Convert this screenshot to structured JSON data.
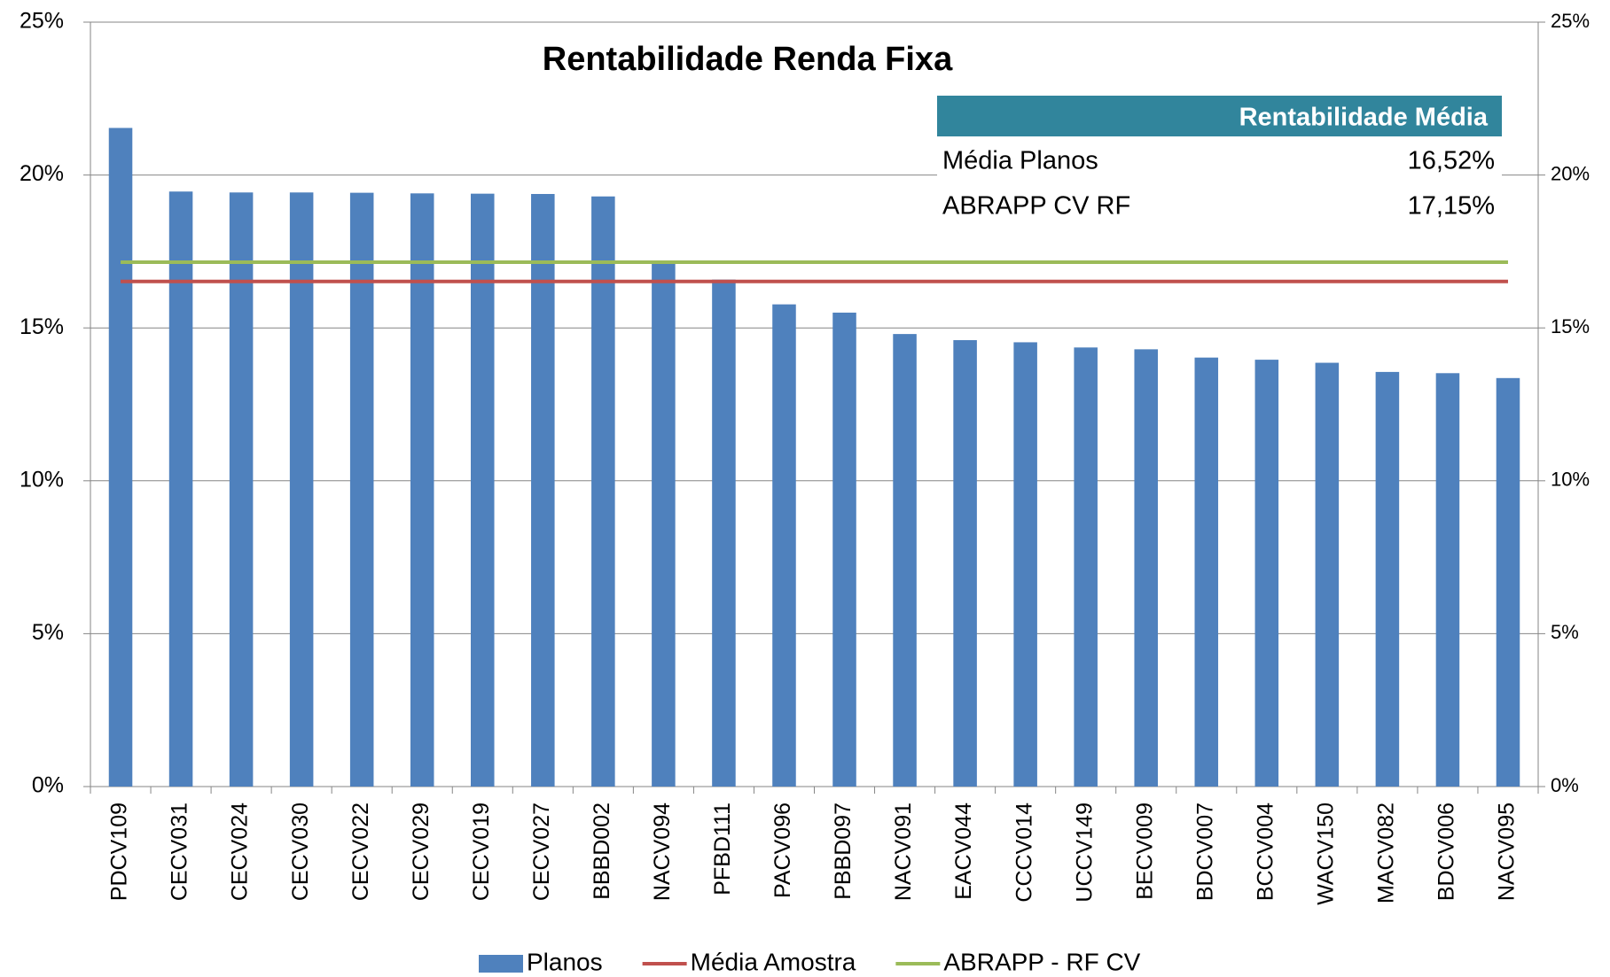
{
  "chart_data": {
    "type": "bar",
    "title": "Rentabilidade Renda Fixa",
    "categories": [
      "PDCV109",
      "CECV031",
      "CECV024",
      "CECV030",
      "CECV022",
      "CECV029",
      "CECV019",
      "CECV027",
      "BBBD002",
      "NACV094",
      "PFBD111",
      "PACV096",
      "PBBD097",
      "NACV091",
      "EACV044",
      "CCCV014",
      "UCCV149",
      "BECV009",
      "BDCV007",
      "BCCV004",
      "WACV150",
      "MACV082",
      "BDCV006",
      "NACV095"
    ],
    "series": [
      {
        "name": "Planos",
        "type": "bar",
        "color": "#4f81bd",
        "values": [
          21.54,
          19.46,
          19.43,
          19.43,
          19.42,
          19.4,
          19.39,
          19.38,
          19.3,
          17.1,
          16.58,
          15.77,
          15.5,
          14.8,
          14.6,
          14.53,
          14.36,
          14.3,
          14.03,
          13.96,
          13.86,
          13.56,
          13.52,
          13.36
        ]
      },
      {
        "name": "Média Amostra",
        "type": "line",
        "color": "#c0504d",
        "values": [
          16.52,
          16.52,
          16.52,
          16.52,
          16.52,
          16.52,
          16.52,
          16.52,
          16.52,
          16.52,
          16.52,
          16.52,
          16.52,
          16.52,
          16.52,
          16.52,
          16.52,
          16.52,
          16.52,
          16.52,
          16.52,
          16.52,
          16.52,
          16.52
        ]
      },
      {
        "name": "ABRAPP - RF CV",
        "type": "line",
        "color": "#9bbb59",
        "values": [
          17.15,
          17.15,
          17.15,
          17.15,
          17.15,
          17.15,
          17.15,
          17.15,
          17.15,
          17.15,
          17.15,
          17.15,
          17.15,
          17.15,
          17.15,
          17.15,
          17.15,
          17.15,
          17.15,
          17.15,
          17.15,
          17.15,
          17.15,
          17.15
        ]
      }
    ],
    "ylim": [
      0,
      25
    ],
    "yticks": [
      {
        "value": 0,
        "label": "0%"
      },
      {
        "value": 5,
        "label": "5%"
      },
      {
        "value": 10,
        "label": "10%"
      },
      {
        "value": 15,
        "label": "15%"
      },
      {
        "value": 20,
        "label": "20%"
      },
      {
        "value": 25,
        "label": "25%"
      }
    ],
    "y2lim": [
      0,
      25
    ],
    "y2ticks": [
      {
        "value": 0,
        "label": "0%"
      },
      {
        "value": 5,
        "label": "5%"
      },
      {
        "value": 10,
        "label": "10%"
      },
      {
        "value": 15,
        "label": "15%"
      },
      {
        "value": 20,
        "label": "20%"
      },
      {
        "value": 25,
        "label": "25%"
      }
    ],
    "grid": true,
    "legend": "bottom",
    "table": {
      "header": "Rentabilidade Média",
      "color": "#31859c",
      "rows": [
        [
          "Média Planos",
          "16,52%"
        ],
        [
          "ABRAPP CV RF",
          "17,15%"
        ]
      ]
    }
  }
}
